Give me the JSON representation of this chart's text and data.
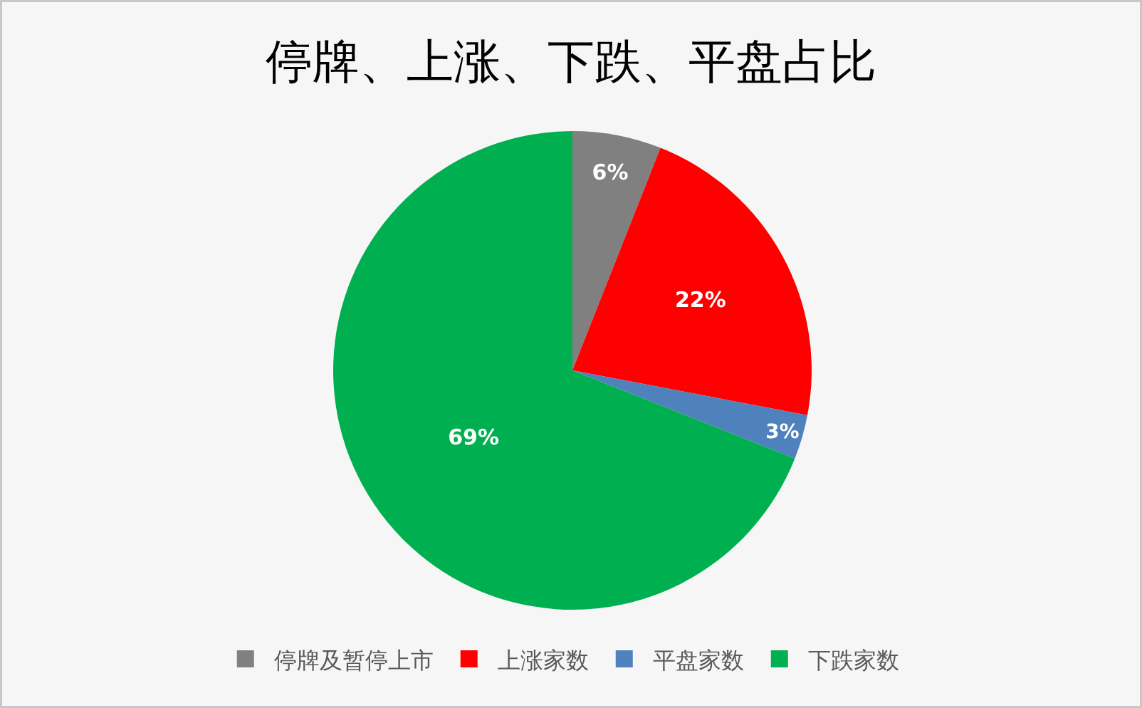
{
  "chart_data": {
    "type": "pie",
    "title": "停牌、上涨、下跌、平盘占比",
    "categories": [
      "停牌及暂停上市",
      "上涨家数",
      "平盘家数",
      "下跌家数"
    ],
    "values": [
      6,
      22,
      3,
      69
    ],
    "value_labels": [
      "6%",
      "22%",
      "3%",
      "69%"
    ],
    "colors": [
      "#808080",
      "#ff0000",
      "#4f81bd",
      "#00b050"
    ],
    "legend": "bottom"
  }
}
